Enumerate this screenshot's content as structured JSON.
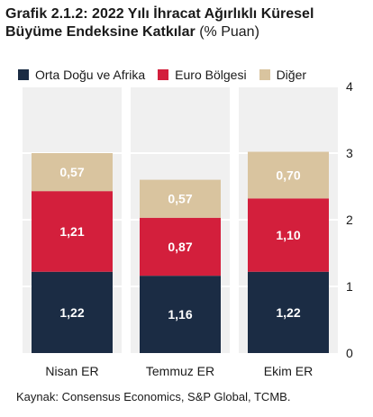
{
  "title": {
    "bold_line1": "Grafik 2.1.2: 2022 Yılı İhracat Ağırlıklı Küresel",
    "bold_line2": "Büyüme Endeksine Katkılar",
    "unit": " (% Puan)"
  },
  "source": "Kaynak: Consensus Economics, S&P Global, TCMB.",
  "colors": {
    "orta_dogu": "#1b2c44",
    "euro": "#d31f3c",
    "diger": "#d9c49f",
    "column_bg": "#f0f0f0",
    "gridline": "#ffffff"
  },
  "chart_data": {
    "type": "bar",
    "stacked": true,
    "categories": [
      "Nisan ER",
      "Temmuz ER",
      "Ekim ER"
    ],
    "series": [
      {
        "name": "Orta Doğu ve Afrika",
        "values": [
          1.22,
          1.16,
          1.22
        ],
        "labels": [
          "1,22",
          "1,16",
          "1,22"
        ]
      },
      {
        "name": "Euro Bölgesi",
        "values": [
          1.21,
          0.87,
          1.1
        ],
        "labels": [
          "1,21",
          "0,87",
          "1,10"
        ]
      },
      {
        "name": "Diğer",
        "values": [
          0.57,
          0.57,
          0.7
        ],
        "labels": [
          "0,57",
          "0,57",
          "0,70"
        ]
      }
    ],
    "ylim": [
      0,
      4
    ],
    "yticks": [
      "0",
      "1",
      "2",
      "3",
      "4"
    ],
    "yaxis_position": "right",
    "legend_position": "top",
    "grid": true
  }
}
